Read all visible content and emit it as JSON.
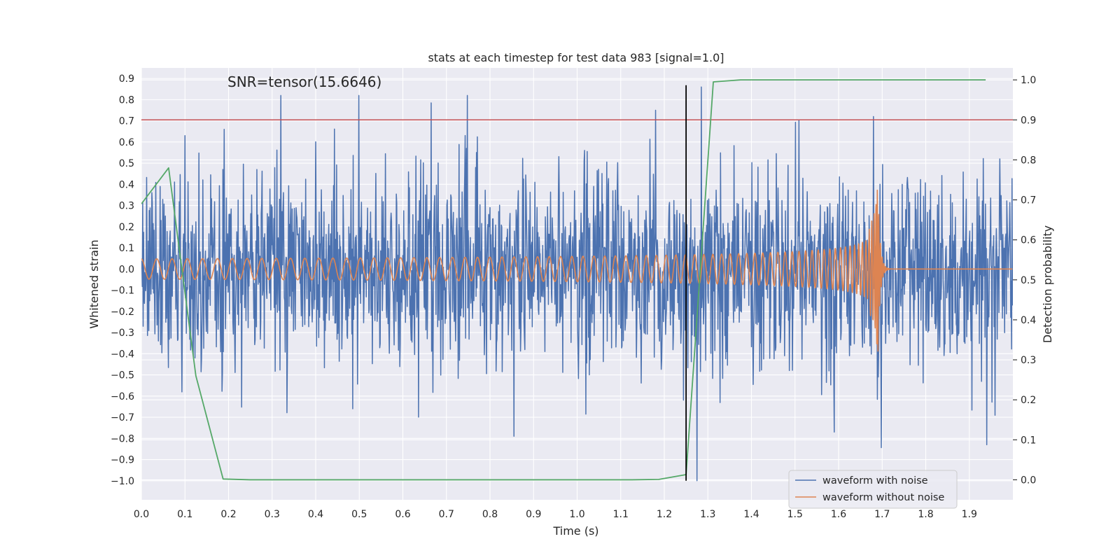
{
  "chart_data": {
    "type": "line",
    "title": "stats at each timestep for test data 983 [signal=1.0]",
    "xlabel": "Time (s)",
    "ylabel": "Whitened strain",
    "y2label": "Detection probability",
    "annotation": "SNR=tensor(15.6646)",
    "xlim": [
      0.0,
      2.0
    ],
    "ylim": [
      -1.09,
      0.95
    ],
    "y2lim": [
      -0.05,
      1.03
    ],
    "x_ticks": [
      0.0,
      0.1,
      0.2,
      0.3,
      0.4,
      0.5,
      0.6,
      0.7,
      0.8,
      0.9,
      1.0,
      1.1,
      1.2,
      1.3,
      1.4,
      1.5,
      1.6,
      1.7,
      1.8,
      1.9
    ],
    "x_tick_labels": [
      "0.0",
      "0.1",
      "0.2",
      "0.3",
      "0.4",
      "0.5",
      "0.6",
      "0.7",
      "0.8",
      "0.9",
      "1.0",
      "1.1",
      "1.2",
      "1.3",
      "1.4",
      "1.5",
      "1.6",
      "1.7",
      "1.8",
      "1.9"
    ],
    "y_ticks": [
      0.9,
      0.8,
      0.7,
      0.6,
      0.5,
      0.4,
      0.3,
      0.2,
      0.1,
      0.0,
      -0.1,
      -0.2,
      -0.3,
      -0.4,
      -0.5,
      -0.6,
      -0.7,
      -0.8,
      -0.9,
      -1.0
    ],
    "y_tick_labels": [
      "0.9",
      "0.8",
      "0.7",
      "0.6",
      "0.5",
      "0.4",
      "0.3",
      "0.2",
      "0.1",
      "0.0",
      "−0.1",
      "−0.2",
      "−0.3",
      "−0.4",
      "−0.5",
      "−0.6",
      "−0.7",
      "−0.8",
      "−0.9",
      "−1.0"
    ],
    "y2_ticks": [
      1.0,
      0.9,
      0.8,
      0.7,
      0.6,
      0.5,
      0.4,
      0.3,
      0.2,
      0.1,
      0.0
    ],
    "y2_tick_labels": [
      "1.0",
      "0.9",
      "0.8",
      "0.7",
      "0.6",
      "0.5",
      "0.4",
      "0.3",
      "0.2",
      "0.1",
      "0.0"
    ],
    "threshold": {
      "axis": "y2",
      "value": 0.9,
      "color": "#c44e52"
    },
    "marker_line": {
      "x": 1.25,
      "y_from": -1.0,
      "y_to": 0.868,
      "color": "#000000"
    },
    "series": [
      {
        "name": "waveform with noise",
        "color": "#4c72b0",
        "axis": "y",
        "generator": {
          "kind": "noise",
          "seed": 983,
          "samples": 2000,
          "std": 0.21,
          "clip": [
            -1.0,
            0.82
          ]
        },
        "spikes": [
          {
            "x": 0.32,
            "y": 0.82
          },
          {
            "x": 0.1,
            "y": 0.63
          },
          {
            "x": 0.19,
            "y": 0.66
          },
          {
            "x": 1.18,
            "y": 0.75
          },
          {
            "x": 1.285,
            "y": 0.86
          },
          {
            "x": 1.68,
            "y": 0.72
          },
          {
            "x": 1.275,
            "y": -1.0
          },
          {
            "x": 1.94,
            "y": -0.83
          },
          {
            "x": 0.855,
            "y": -0.79
          },
          {
            "x": 0.485,
            "y": -0.66
          },
          {
            "x": 1.97,
            "y": 0.52
          },
          {
            "x": 1.59,
            "y": -0.77
          }
        ]
      },
      {
        "name": "waveform without noise",
        "color": "#dd8452",
        "axis": "y",
        "generator": {
          "kind": "chirp",
          "t_merge": 1.69,
          "f0": 28,
          "a0": 0.048,
          "ring_down_end": 1.72
        }
      },
      {
        "name": "detection probability",
        "color": "#55a868",
        "axis": "y2",
        "legend": false,
        "x": [
          0.0,
          0.0625,
          0.125,
          0.1875,
          0.25,
          0.3125,
          0.375,
          0.4375,
          0.5,
          0.5625,
          0.625,
          0.6875,
          0.75,
          0.8125,
          0.875,
          0.9375,
          1.0,
          1.0625,
          1.125,
          1.1875,
          1.25,
          1.3125,
          1.375,
          1.4375,
          1.5,
          1.5625,
          1.625,
          1.6875,
          1.75,
          1.8125,
          1.875,
          1.9375
        ],
        "y": [
          0.69,
          0.78,
          0.26,
          0.002,
          0.0,
          0.0,
          0.0,
          0.0,
          0.0,
          0.0,
          0.0,
          0.0,
          0.0,
          0.0,
          0.0,
          0.0,
          0.0,
          0.0,
          0.0,
          0.001,
          0.013,
          0.995,
          1.0,
          1.0,
          1.0,
          1.0,
          1.0,
          1.0,
          1.0,
          1.0,
          1.0,
          1.0
        ]
      }
    ],
    "legend": {
      "location": "lower-right",
      "entries": [
        {
          "label": "waveform with noise",
          "color": "#4c72b0"
        },
        {
          "label": "waveform without noise",
          "color": "#dd8452"
        }
      ]
    },
    "style": {
      "background": "#eaeaf2",
      "grid": true,
      "grid_color": "#ffffff"
    }
  }
}
